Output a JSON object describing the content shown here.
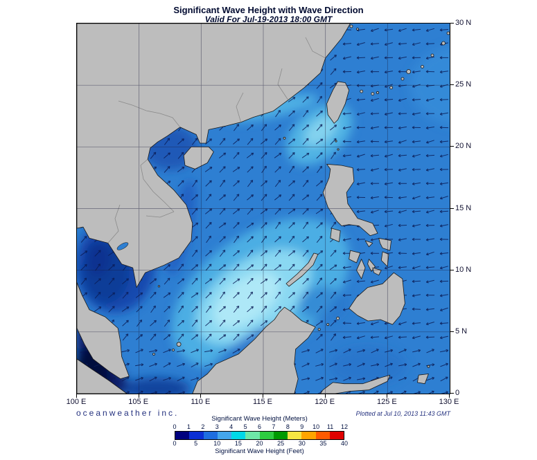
{
  "header": {
    "title": "Significant Wave Height with Wave Direction",
    "subtitle": "Valid For Jul-19-2013 18:00 GMT"
  },
  "footer": {
    "credit": "oceanweather inc.",
    "plotted": "Plotted at Jul 10, 2013 11:43 GMT"
  },
  "axes": {
    "lon_labels": [
      "100 E",
      "105 E",
      "110 E",
      "115 E",
      "120 E",
      "125 E",
      "130 E"
    ],
    "lat_labels": [
      "30 N",
      "25 N",
      "20 N",
      "15 N",
      "10 N",
      "5 N",
      "0"
    ]
  },
  "legend": {
    "meters_label": "Significant Wave Height (Meters)",
    "meters_ticks": [
      "0",
      "1",
      "2",
      "3",
      "4",
      "5",
      "6",
      "7",
      "8",
      "9",
      "10",
      "11",
      "12"
    ],
    "feet_label": "Significant Wave Height (Feet)",
    "feet_ticks": [
      "0",
      "5",
      "10",
      "15",
      "20",
      "25",
      "30",
      "35",
      "40"
    ],
    "colors": [
      "#00007e",
      "#0b2fd4",
      "#1e6ee0",
      "#44a6ec",
      "#00d8e8",
      "#6ee8a8",
      "#2ecc40",
      "#009a00",
      "#f5e642",
      "#ffa500",
      "#ff5a00",
      "#e00000"
    ]
  },
  "chart_data": {
    "type": "heatmap",
    "title": "Significant Wave Height with Wave Direction",
    "valid_time": "Jul-19-2013 18:00 GMT",
    "plotted_time": "Jul 10, 2013 11:43 GMT",
    "region": {
      "lon_min_deg_e": 100,
      "lon_max_deg_e": 130,
      "lat_min_deg_n": 0,
      "lat_max_deg_n": 30
    },
    "grid_interval_deg": 5,
    "colorbar": {
      "meters_label": "Significant Wave Height (Meters)",
      "meters_ticks": [
        0,
        1,
        2,
        3,
        4,
        5,
        6,
        7,
        8,
        9,
        10,
        11,
        12
      ],
      "feet_label": "Significant Wave Height (Feet)",
      "feet_ticks": [
        0,
        5,
        10,
        15,
        20,
        25,
        30,
        35,
        40
      ],
      "colors": [
        "#00007e",
        "#0b2fd4",
        "#1e6ee0",
        "#44a6ec",
        "#00d8e8",
        "#6ee8a8",
        "#2ecc40",
        "#009a00",
        "#f5e642",
        "#ffa500",
        "#ff5a00",
        "#e00000"
      ]
    },
    "wave_height_features": [
      {
        "area": "central South China Sea off southern Vietnam (8-13N, 108-116E)",
        "sig_wave_height_m": 3.5
      },
      {
        "area": "Taiwan Strait and approach to Luzon Strait",
        "sig_wave_height_m": 3
      },
      {
        "area": "open Philippine Sea east of 121E",
        "sig_wave_height_m": 2
      },
      {
        "area": "Gulf of Tonkin",
        "sig_wave_height_m": 1.5
      },
      {
        "area": "Gulf of Thailand",
        "sig_wave_height_m": 1
      },
      {
        "area": "Malacca Strait / far southwest corner",
        "sig_wave_height_m": 0.5
      }
    ],
    "wave_direction_regions": [
      {
        "region": "South China Sea and Gulf of Thailand",
        "direction": "toward northeast",
        "bearing_deg": 45
      },
      {
        "region": "Philippine Sea east of about 121E",
        "direction": "toward west",
        "bearing_deg": 262
      },
      {
        "region": "equatorial band south of about 4N",
        "direction": "toward east-northeast",
        "bearing_deg": 70
      }
    ]
  }
}
